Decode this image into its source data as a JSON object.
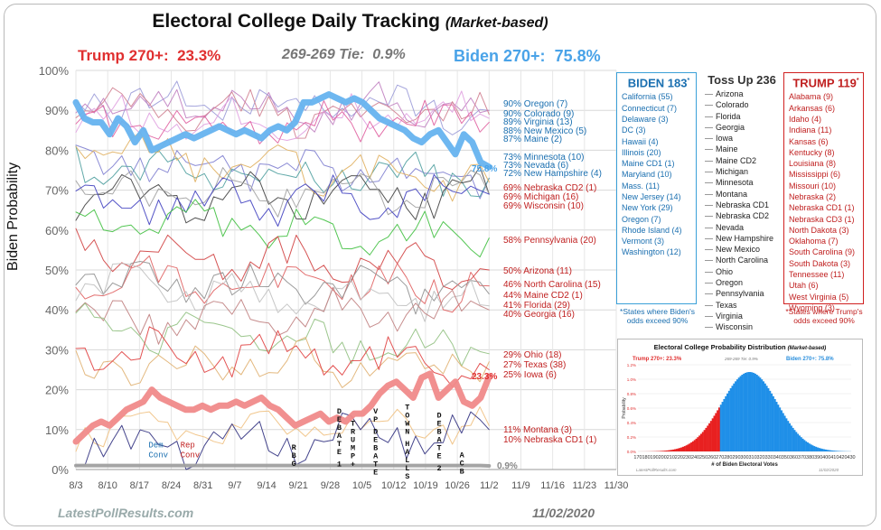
{
  "page": {
    "title": "Electoral College Daily Tracking",
    "title_suffix": "(Market-based)",
    "trump_270_label": "Trump 270+:",
    "trump_270_value": "23.3%",
    "tie_label": "269-269 Tie:",
    "tie_value": "0.9%",
    "biden_270_label": "Biden 270+:",
    "biden_270_value": "75.8%",
    "footer_site": "LatestPollResults.com",
    "footer_date": "11/02/2020"
  },
  "colors": {
    "biden_blue": "#66b3ef",
    "trump_red": "#f08a8a",
    "tie_gray": "#a0a0a0",
    "dem_text": "#1a6fb0",
    "rep_text": "#c02020"
  },
  "chart_data": [
    {
      "type": "line",
      "ylabel": "Biden Probability",
      "ylim": [
        0,
        100
      ],
      "yticks": [
        "0%",
        "10%",
        "20%",
        "30%",
        "40%",
        "50%",
        "60%",
        "70%",
        "80%",
        "90%",
        "100%"
      ],
      "xticks": [
        "8/3",
        "8/10",
        "8/17",
        "8/24",
        "8/31",
        "9/7",
        "9/14",
        "9/21",
        "9/28",
        "10/5",
        "10/12",
        "10/19",
        "10/26",
        "11/2",
        "11/9",
        "11/16",
        "11/23",
        "11/30"
      ],
      "grid": true,
      "series": [
        {
          "name": "Biden 270+",
          "color": "#66b3ef",
          "width": 7,
          "end_label": "75.8%",
          "values": [
            92,
            88,
            87,
            87,
            84,
            88,
            86,
            82,
            85,
            80,
            81,
            82,
            83,
            84,
            83,
            84,
            85,
            86,
            85,
            84,
            85,
            84,
            83,
            85,
            86,
            85,
            87,
            92,
            92,
            93,
            94,
            93,
            92,
            93,
            92,
            90,
            88,
            87,
            86,
            85,
            83,
            82,
            84,
            85,
            82,
            79,
            84,
            82,
            77,
            75.8
          ]
        },
        {
          "name": "Trump 270+",
          "color": "#f08a8a",
          "width": 7,
          "end_label": "23.3%",
          "values": [
            7,
            9,
            11,
            12,
            11,
            13,
            15,
            16,
            17,
            20,
            18,
            17,
            16,
            15,
            15,
            16,
            15,
            16,
            16,
            17,
            16,
            17,
            18,
            16,
            15,
            13,
            11,
            12,
            13,
            14,
            12,
            13,
            12,
            14,
            14,
            16,
            19,
            21,
            22,
            20,
            18,
            23,
            24,
            18,
            20,
            22,
            17,
            16,
            18,
            23.3
          ]
        },
        {
          "name": "Tie",
          "color": "#a0a0a0",
          "width": 4,
          "end_label": "0.9%",
          "values": [
            1,
            1,
            1,
            1,
            1,
            1,
            1,
            1,
            1,
            1,
            1,
            1,
            1,
            1,
            1,
            1,
            1,
            1,
            1,
            1,
            1,
            1,
            1,
            1,
            1,
            1,
            1,
            1,
            1,
            1,
            1,
            1,
            1,
            1,
            1,
            1,
            1,
            1,
            1,
            1,
            1,
            1,
            1,
            1,
            1,
            1,
            1,
            1,
            1,
            0.9
          ]
        },
        {
          "name": "Oregon",
          "color": "#9b9bd8",
          "width": 1,
          "end_label": "90% Oregon (7)",
          "values_start": 93,
          "values_end": 90
        },
        {
          "name": "Colorado",
          "color": "#c080c0",
          "width": 1,
          "end_label": "90% Colorado (9)",
          "values_start": 92,
          "values_end": 90
        },
        {
          "name": "Virginia",
          "color": "#d08090",
          "width": 1,
          "end_label": "89% Virginia (13)",
          "values_start": 90,
          "values_end": 89
        },
        {
          "name": "New Mexico",
          "color": "#e0a0e0",
          "width": 1,
          "end_label": "88% New Mexico (5)",
          "values_start": 88,
          "values_end": 88
        },
        {
          "name": "Maine",
          "color": "#e060a0",
          "width": 1,
          "end_label": "87% Maine (2)",
          "values_start": 86,
          "values_end": 87
        },
        {
          "name": "Minnesota",
          "color": "#8080d0",
          "width": 1,
          "end_label": "73% Minnesota (10)",
          "values_start": 78,
          "values_end": 73
        },
        {
          "name": "Nevada",
          "color": "#50a0a0",
          "width": 1,
          "end_label": "73% Nevada (6)",
          "values_start": 76,
          "values_end": 73
        },
        {
          "name": "New Hampshire",
          "color": "#e0b060",
          "width": 1,
          "end_label": "72% New Hampshire (4)",
          "values_start": 80,
          "values_end": 72
        },
        {
          "name": "Nebraska CD2",
          "color": "#404040",
          "width": 1,
          "end_label": "69% Nebraska CD2 (1)",
          "values_start": 68,
          "values_end": 69
        },
        {
          "name": "Michigan",
          "color": "#a0a0a0",
          "width": 1,
          "end_label": "69% Michigan (16)",
          "values_start": 70,
          "values_end": 69
        },
        {
          "name": "Wisconsin",
          "color": "#4040c0",
          "width": 1,
          "end_label": "69% Wisconsin (10)",
          "values_start": 66,
          "values_end": 69
        },
        {
          "name": "Pennsylvania",
          "color": "#40c040",
          "width": 1,
          "end_label": "58% Pennsylvania (20)",
          "values_start": 62,
          "values_end": 58
        },
        {
          "name": "Arizona",
          "color": "#d04040",
          "width": 1,
          "end_label": "50% Arizona (11)",
          "values_start": 55,
          "values_end": 50
        },
        {
          "name": "North Carolina",
          "color": "#e06060",
          "width": 1,
          "end_label": "46% North Carolina (15)",
          "values_start": 47,
          "values_end": 46
        },
        {
          "name": "Maine CD2",
          "color": "#909090",
          "width": 1,
          "end_label": "44% Maine CD2 (1)",
          "values_start": 48,
          "values_end": 44
        },
        {
          "name": "Florida",
          "color": "#c0c0c0",
          "width": 1,
          "end_label": "41% Florida (29)",
          "values_start": 46,
          "values_end": 41
        },
        {
          "name": "Georgia",
          "color": "#c08080",
          "width": 1,
          "end_label": "40% Georgia (16)",
          "values_start": 37,
          "values_end": 40
        },
        {
          "name": "Ohio",
          "color": "#90c080",
          "width": 1,
          "end_label": "29% Ohio (18)",
          "values_start": 36,
          "values_end": 29
        },
        {
          "name": "Texas",
          "color": "#e0b070",
          "width": 1,
          "end_label": "27% Texas (38)",
          "values_start": 26,
          "values_end": 27
        },
        {
          "name": "Iowa",
          "color": "#e04040",
          "width": 1,
          "end_label": "25% Iowa (6)",
          "values_start": 31,
          "values_end": 25
        },
        {
          "name": "Montana",
          "color": "#f0c080",
          "width": 1,
          "end_label": "11% Montana (3)",
          "values_start": 10,
          "values_end": 11
        },
        {
          "name": "Nebraska CD1",
          "color": "#303080",
          "width": 1,
          "end_label": "10% Nebraska CD1 (1)",
          "values_start": 5,
          "values_end": 10
        }
      ],
      "annotations": [
        {
          "text": "Dem Conv",
          "x_day": 16,
          "y": 5.5,
          "color": "#1a6fb0"
        },
        {
          "text": "Rep Conv",
          "x_day": 23,
          "y": 5.5,
          "color": "#c02020"
        },
        {
          "text": "RBG",
          "x_day": 48,
          "y": 5
        },
        {
          "text": "DEBATE 1",
          "x_day": 58,
          "y": 14
        },
        {
          "text": "TRUMP+",
          "x_day": 61,
          "y": 11
        },
        {
          "text": "VP DEBATE",
          "x_day": 66,
          "y": 14
        },
        {
          "text": "TOWN HALLS",
          "x_day": 73,
          "y": 15
        },
        {
          "text": "DEBATE 2",
          "x_day": 80,
          "y": 13
        },
        {
          "text": "ACB",
          "x_day": 85,
          "y": 3
        }
      ]
    },
    {
      "type": "area",
      "title": "Electoral College Probability Distribution",
      "title_suffix": "(Market-based)",
      "trump_label": "Trump 270+:",
      "trump_value": "23.3%",
      "tie_label": "269-269 Tie:",
      "tie_value": "0.9%",
      "biden_label": "Biden 270+:",
      "biden_value": "75.8%",
      "xlabel": "# of Biden Electoral Votes",
      "ylabel": "Probability",
      "xlim": [
        170,
        430
      ],
      "ylim": [
        0,
        1.2
      ],
      "xticks": [
        "170",
        "180",
        "190",
        "200",
        "210",
        "220",
        "230",
        "240",
        "250",
        "260",
        "270",
        "280",
        "290",
        "300",
        "310",
        "320",
        "330",
        "340",
        "350",
        "360",
        "370",
        "380",
        "390",
        "400",
        "410",
        "420",
        "430"
      ],
      "yticks": [
        "0.0%",
        "0.2%",
        "0.4%",
        "0.6%",
        "0.8%",
        "1.0%",
        "1.2%"
      ],
      "mean": 305,
      "sd": 34,
      "peak": 1.1,
      "footer_site": "LatestPollResults.com",
      "footer_date": "11/02/2020"
    }
  ],
  "boxes": {
    "biden": {
      "title": "BIDEN 183",
      "marker": "*",
      "items": [
        "California (55)",
        "Connecticut (7)",
        "Delaware (3)",
        "DC (3)",
        "Hawaii (4)",
        "Illinois (20)",
        "Maine CD1 (1)",
        "Maryland (10)",
        "Mass. (11)",
        "New Jersey (14)",
        "New York (29)",
        "Oregon (7)",
        "Rhode Island (4)",
        "Vermont (3)",
        "Washington (12)"
      ],
      "note": "*States where Biden's odds exceed 90%"
    },
    "tossup": {
      "title": "Toss Up 236",
      "items": [
        "Arizona",
        "Colorado",
        "Florida",
        "Georgia",
        "Iowa",
        "Maine",
        "Maine CD2",
        "Michigan",
        "Minnesota",
        "Montana",
        "Nebraska CD1",
        "Nebraska CD2",
        "Nevada",
        "New Hampshire",
        "New Mexico",
        "North Carolina",
        "Ohio",
        "Oregon",
        "Pennsylvania",
        "Texas",
        "Virginia",
        "Wisconsin"
      ]
    },
    "trump": {
      "title": "TRUMP 119",
      "marker": "*",
      "items": [
        "Alabama (9)",
        "Arkansas (6)",
        "Idaho (4)",
        "Indiana (11)",
        "Kansas (6)",
        "Kentucky (8)",
        "Louisiana (8)",
        "Mississippi (6)",
        "Missouri (10)",
        "Nebraska (2)",
        "Nebraska CD1 (1)",
        "Nebraska CD3 (1)",
        "North Dakota (3)",
        "Oklahoma (7)",
        "South Carolina (9)",
        "South Dakota (3)",
        "Tennessee (11)",
        "Utah (6)",
        "West Virginia (5)",
        "Wyoming (3)"
      ],
      "note": "*States where Trump's odds exceed 90%"
    }
  }
}
